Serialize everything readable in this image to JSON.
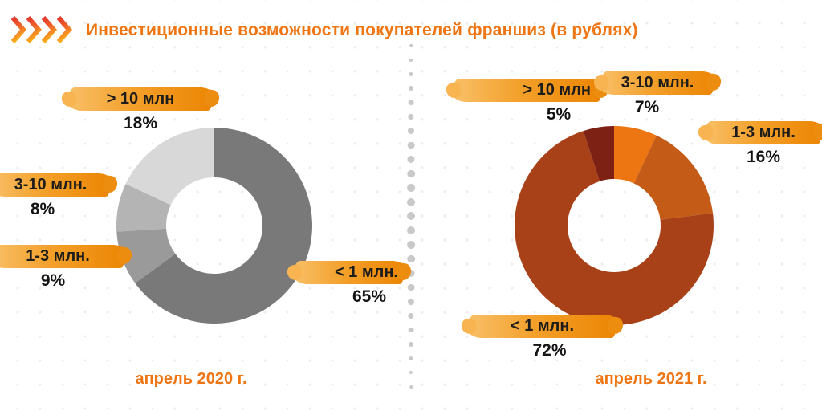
{
  "page": {
    "title": "Инвестиционные возможности покупателей франшиз (в рублях)",
    "title_color": "#ee7512",
    "divider_style": "vertical dotted line between charts",
    "label_highlight_gradient": [
      "#f9c068",
      "#ec8503"
    ],
    "background_pattern": "faint light-gray dot grid"
  },
  "chart_data": [
    {
      "type": "pie",
      "subtype": "donut",
      "title": "апрель 2020 г.",
      "units": "%",
      "legend_position": "brush-stroke callouts around donut",
      "palette": "grayscale",
      "segments": [
        {
          "label": "< 1 млн.",
          "value": 65,
          "percent": "65%",
          "color": "#797979"
        },
        {
          "label": "1-3 млн.",
          "value": 9,
          "percent": "9%",
          "color": "#9a9a9a"
        },
        {
          "label": "3-10 млн.",
          "value": 8,
          "percent": "8%",
          "color": "#b4b4b4"
        },
        {
          "label": "> 10 млн",
          "value": 18,
          "percent": "18%",
          "color": "#d8d8d8"
        }
      ]
    },
    {
      "type": "pie",
      "subtype": "donut",
      "title": "апрель 2021 г.",
      "units": "%",
      "legend_position": "brush-stroke callouts around donut",
      "palette": "orange-rust",
      "segments": [
        {
          "label": "3-10 млн.",
          "value": 7,
          "percent": "7%",
          "color": "#ed7613"
        },
        {
          "label": "1-3 млн.",
          "value": 16,
          "percent": "16%",
          "color": "#c45c17"
        },
        {
          "label": "< 1 млн.",
          "value": 72,
          "percent": "72%",
          "color": "#a84117"
        },
        {
          "label": "> 10 млн",
          "value": 5,
          "percent": "5%",
          "color": "#7d2114"
        }
      ]
    }
  ]
}
